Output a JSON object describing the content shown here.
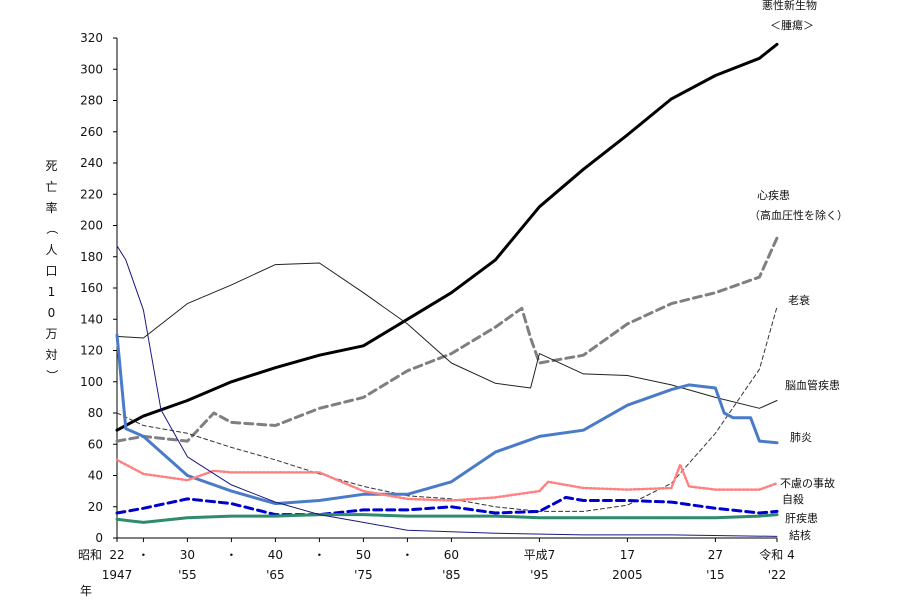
{
  "chart_data": {
    "type": "line",
    "ylabel": "死亡率（人口10万対）",
    "xlabel": "年",
    "ylim": [
      0,
      320
    ],
    "yticks": [
      0,
      20,
      40,
      60,
      80,
      100,
      120,
      140,
      160,
      180,
      200,
      220,
      240,
      260,
      280,
      300,
      320
    ],
    "xlim": [
      1947,
      2022
    ],
    "grid": false,
    "x_ticks": [
      {
        "x": 1947,
        "top": "22",
        "bottom": "1947"
      },
      {
        "x": 1950,
        "top": "・",
        "bottom": ""
      },
      {
        "x": 1955,
        "top": "30",
        "bottom": "'55"
      },
      {
        "x": 1960,
        "top": "・",
        "bottom": ""
      },
      {
        "x": 1965,
        "top": "40",
        "bottom": "'65"
      },
      {
        "x": 1970,
        "top": "・",
        "bottom": ""
      },
      {
        "x": 1975,
        "top": "50",
        "bottom": "'75"
      },
      {
        "x": 1980,
        "top": "・",
        "bottom": ""
      },
      {
        "x": 1985,
        "top": "60",
        "bottom": "'85"
      },
      {
        "x": 1995,
        "top": "平成7",
        "bottom": "'95"
      },
      {
        "x": 2005,
        "top": "17",
        "bottom": "2005"
      },
      {
        "x": 2015,
        "top": "27",
        "bottom": "'15"
      },
      {
        "x": 2022,
        "top": "令和 4",
        "bottom": "'22"
      }
    ],
    "era_label": "昭和",
    "series": [
      {
        "name": "悪性新生物＜腫瘍＞",
        "color": "#000000",
        "style": "solid-thick",
        "x": [
          1947,
          1950,
          1955,
          1960,
          1965,
          1970,
          1975,
          1980,
          1985,
          1990,
          1995,
          2000,
          2005,
          2010,
          2015,
          2020,
          2022
        ],
        "y": [
          69,
          78,
          88,
          100,
          109,
          117,
          123,
          140,
          157,
          178,
          212,
          236,
          258,
          281,
          296,
          307,
          316
        ]
      },
      {
        "name": "心疾患（高血圧性を除く）",
        "color": "#7f7f7f",
        "style": "dashed-thick",
        "x": [
          1947,
          1950,
          1955,
          1958,
          1960,
          1965,
          1970,
          1975,
          1980,
          1985,
          1990,
          1993,
          1994,
          1995,
          2000,
          2005,
          2010,
          2015,
          2020,
          2022
        ],
        "y": [
          62,
          65,
          62,
          80,
          74,
          72,
          83,
          90,
          107,
          118,
          135,
          147,
          128,
          112,
          117,
          137,
          150,
          157,
          167,
          192
        ]
      },
      {
        "name": "老衰",
        "color": "#333333",
        "style": "dashed-thin",
        "x": [
          1947,
          1950,
          1955,
          1960,
          1965,
          1970,
          1975,
          1980,
          1985,
          1990,
          1995,
          2000,
          2005,
          2010,
          2015,
          2020,
          2022
        ],
        "y": [
          80,
          72,
          67,
          58,
          50,
          41,
          33,
          27,
          25,
          20,
          17,
          17,
          21,
          35,
          67,
          108,
          148
        ]
      },
      {
        "name": "脳血管疾患",
        "color": "#222222",
        "style": "solid-thin",
        "x": [
          1947,
          1950,
          1955,
          1960,
          1965,
          1970,
          1975,
          1980,
          1985,
          1990,
          1994,
          1995,
          2000,
          2005,
          2010,
          2015,
          2020,
          2022
        ],
        "y": [
          129,
          128,
          150,
          162,
          175,
          176,
          157,
          137,
          112,
          99,
          96,
          118,
          105,
          104,
          98,
          90,
          83,
          88
        ]
      },
      {
        "name": "肺炎",
        "color": "#4a7bc8",
        "style": "solid-thick",
        "x": [
          1947,
          1948,
          1950,
          1955,
          1960,
          1965,
          1970,
          1975,
          1980,
          1985,
          1990,
          1995,
          2000,
          2005,
          2010,
          2012,
          2015,
          2016,
          2017,
          2019,
          2020,
          2022
        ],
        "y": [
          130,
          70,
          65,
          40,
          30,
          22,
          24,
          28,
          28,
          36,
          55,
          65,
          69,
          85,
          95,
          98,
          96,
          80,
          77,
          77,
          62,
          61
        ]
      },
      {
        "name": "不慮の事故",
        "color": "#ff8080",
        "style": "dotted-thick",
        "x": [
          1947,
          1950,
          1955,
          1958,
          1960,
          1965,
          1970,
          1975,
          1980,
          1985,
          1990,
          1995,
          1996,
          2000,
          2005,
          2010,
          2011,
          2012,
          2015,
          2020,
          2022
        ],
        "y": [
          50,
          41,
          37,
          43,
          42,
          42,
          42,
          30,
          25,
          24,
          26,
          30,
          36,
          32,
          31,
          32,
          47,
          33,
          31,
          31,
          35
        ]
      },
      {
        "name": "自殺",
        "color": "#0000cc",
        "style": "dashed-thick",
        "x": [
          1947,
          1950,
          1955,
          1960,
          1965,
          1970,
          1975,
          1980,
          1985,
          1990,
          1995,
          1998,
          2000,
          2005,
          2010,
          2015,
          2020,
          2022
        ],
        "y": [
          16,
          19,
          25,
          22,
          15,
          15,
          18,
          18,
          20,
          16,
          17,
          26,
          24,
          24,
          23,
          19,
          16,
          17
        ]
      },
      {
        "name": "肝疾患",
        "color": "#2e8b6e",
        "style": "solid-thick",
        "x": [
          1947,
          1950,
          1955,
          1960,
          1965,
          1970,
          1975,
          1980,
          1985,
          1990,
          1995,
          2000,
          2005,
          2010,
          2015,
          2020,
          2022
        ],
        "y": [
          12,
          10,
          13,
          14,
          14,
          15,
          15,
          14,
          14,
          14,
          13,
          13,
          13,
          13,
          13,
          14,
          15
        ]
      },
      {
        "name": "結核",
        "color": "#1a1a80",
        "style": "solid-thin",
        "x": [
          1947,
          1948,
          1950,
          1952,
          1955,
          1960,
          1965,
          1970,
          1975,
          1980,
          1985,
          1990,
          2000,
          2010,
          2022
        ],
        "y": [
          187,
          178,
          146,
          82,
          52,
          34,
          23,
          15,
          10,
          5,
          4,
          3,
          2,
          2,
          1
        ]
      }
    ]
  }
}
